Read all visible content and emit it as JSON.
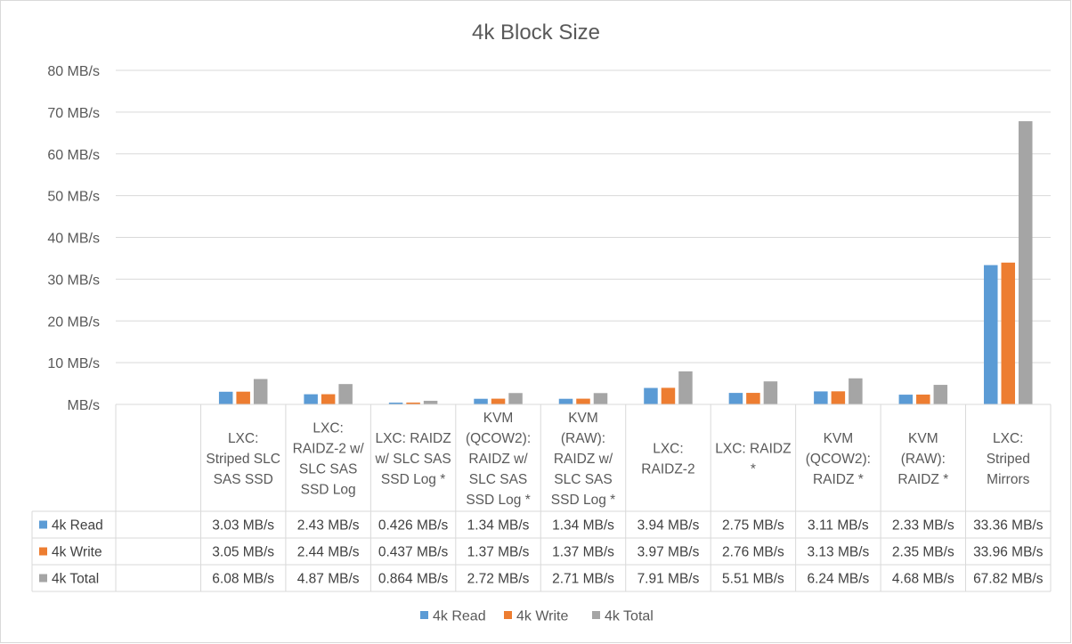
{
  "chart_data": {
    "type": "bar",
    "title": "4k Block Size",
    "ylim": [
      0,
      80
    ],
    "yticks": [
      0,
      10,
      20,
      30,
      40,
      50,
      60,
      70,
      80
    ],
    "ytick_labels": [
      "MB/s",
      "10 MB/s",
      "20 MB/s",
      "30 MB/s",
      "40 MB/s",
      "50 MB/s",
      "60 MB/s",
      "70 MB/s",
      "80 MB/s"
    ],
    "grid": true,
    "legend": "bottom",
    "categories": [
      "",
      "LXC: Striped SLC SAS SSD",
      "LXC: RAIDZ-2 w/ SLC SAS SSD Log",
      "LXC: RAIDZ w/ SLC SAS SSD Log *",
      "KVM (QCOW2): RAIDZ w/ SLC SAS SSD Log *",
      "KVM (RAW): RAIDZ w/ SLC SAS SSD Log *",
      "LXC: RAIDZ-2",
      "LXC: RAIDZ *",
      "KVM (QCOW2): RAIDZ *",
      "KVM (RAW): RAIDZ *",
      "LXC: Striped Mirrors"
    ],
    "category_lines": [
      [],
      [
        "LXC:",
        "Striped SLC",
        "SAS SSD"
      ],
      [
        "LXC:",
        "RAIDZ-2 w/",
        "SLC SAS",
        "SSD Log"
      ],
      [
        "LXC: RAIDZ",
        "w/ SLC SAS",
        "SSD Log *"
      ],
      [
        "KVM",
        "(QCOW2):",
        "RAIDZ w/",
        "SLC SAS",
        "SSD Log *"
      ],
      [
        "KVM",
        "(RAW):",
        "RAIDZ w/",
        "SLC SAS",
        "SSD Log *"
      ],
      [
        "LXC:",
        "RAIDZ-2"
      ],
      [
        "LXC: RAIDZ",
        "*"
      ],
      [
        "KVM",
        "(QCOW2):",
        "RAIDZ *"
      ],
      [
        "KVM",
        "(RAW):",
        "RAIDZ *"
      ],
      [
        "LXC:",
        "Striped",
        "Mirrors"
      ]
    ],
    "series": [
      {
        "name": "4k Read",
        "color": "#5b9bd5",
        "values": [
          null,
          3.03,
          2.43,
          0.426,
          1.34,
          1.34,
          3.94,
          2.75,
          3.11,
          2.33,
          33.36
        ],
        "labels": [
          "",
          "3.03 MB/s",
          "2.43 MB/s",
          "0.426 MB/s",
          "1.34 MB/s",
          "1.34 MB/s",
          "3.94 MB/s",
          "2.75 MB/s",
          "3.11 MB/s",
          "2.33 MB/s",
          "33.36 MB/s"
        ]
      },
      {
        "name": "4k Write",
        "color": "#ed7d31",
        "values": [
          null,
          3.05,
          2.44,
          0.437,
          1.37,
          1.37,
          3.97,
          2.76,
          3.13,
          2.35,
          33.96
        ],
        "labels": [
          "",
          "3.05 MB/s",
          "2.44 MB/s",
          "0.437 MB/s",
          "1.37 MB/s",
          "1.37 MB/s",
          "3.97 MB/s",
          "2.76 MB/s",
          "3.13 MB/s",
          "2.35 MB/s",
          "33.96 MB/s"
        ]
      },
      {
        "name": "4k Total",
        "color": "#a5a5a5",
        "values": [
          null,
          6.08,
          4.87,
          0.864,
          2.72,
          2.71,
          7.91,
          5.51,
          6.24,
          4.68,
          67.82
        ],
        "labels": [
          "",
          "6.08 MB/s",
          "4.87 MB/s",
          "0.864 MB/s",
          "2.72 MB/s",
          "2.71 MB/s",
          "7.91 MB/s",
          "5.51 MB/s",
          "6.24 MB/s",
          "4.68 MB/s",
          "67.82 MB/s"
        ]
      }
    ]
  }
}
